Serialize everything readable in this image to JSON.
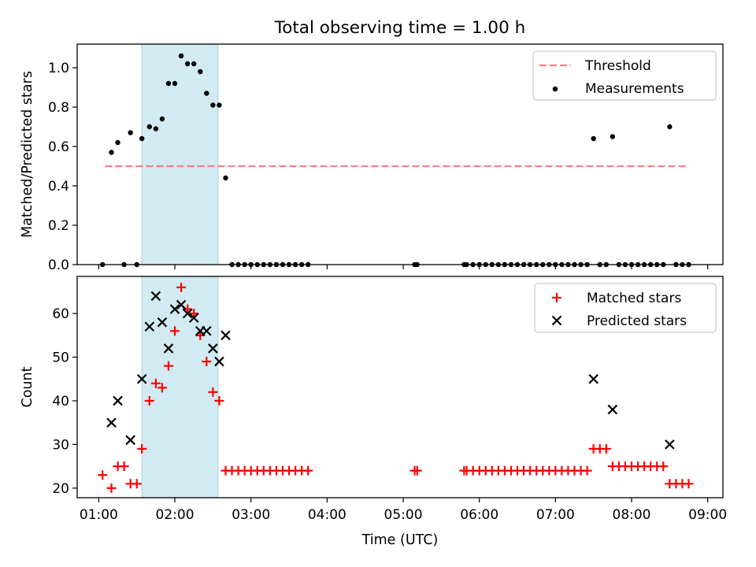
{
  "title": "Total observing time = 1.00 h",
  "colors": {
    "threshold": "#ff7f7f",
    "measurement": "#000000",
    "matched": "#ff0000",
    "predicted": "#000000",
    "window": "#add8e6"
  },
  "chart_data": [
    {
      "type": "scatter",
      "ylabel": "Matched/Predicted stars",
      "ylim": [
        0,
        1.12
      ],
      "yticks": [
        0.0,
        0.2,
        0.4,
        0.6,
        0.8,
        1.0
      ],
      "ytick_labels": [
        "0.0",
        "0.2",
        "0.4",
        "0.6",
        "0.8",
        "1.0"
      ],
      "legend": {
        "placement": "upper right",
        "entries": [
          "Threshold",
          "Measurements"
        ]
      },
      "highlight_window": [
        "01:34",
        "02:34"
      ],
      "threshold": {
        "name": "Threshold",
        "y": 0.5,
        "x_range": [
          "01:05",
          "08:45"
        ]
      },
      "series": [
        {
          "name": "Measurements",
          "points": [
            [
              "01:03",
              0
            ],
            [
              "01:10",
              0.57
            ],
            [
              "01:15",
              0.62
            ],
            [
              "01:20",
              0
            ],
            [
              "01:25",
              0.67
            ],
            [
              "01:30",
              0
            ],
            [
              "01:34",
              0.64
            ],
            [
              "01:40",
              0.7
            ],
            [
              "01:45",
              0.69
            ],
            [
              "01:50",
              0.74
            ],
            [
              "01:55",
              0.92
            ],
            [
              "02:00",
              0.92
            ],
            [
              "02:05",
              1.06
            ],
            [
              "02:10",
              1.02
            ],
            [
              "02:15",
              1.02
            ],
            [
              "02:20",
              0.98
            ],
            [
              "02:25",
              0.87
            ],
            [
              "02:30",
              0.81
            ],
            [
              "02:35",
              0.81
            ],
            [
              "02:40",
              0.44
            ],
            [
              "02:45",
              0
            ],
            [
              "02:50",
              0
            ],
            [
              "02:55",
              0
            ],
            [
              "03:00",
              0
            ],
            [
              "03:05",
              0
            ],
            [
              "03:10",
              0
            ],
            [
              "03:15",
              0
            ],
            [
              "03:20",
              0
            ],
            [
              "03:25",
              0
            ],
            [
              "03:30",
              0
            ],
            [
              "03:35",
              0
            ],
            [
              "03:40",
              0
            ],
            [
              "03:45",
              0
            ],
            [
              "05:09",
              0
            ],
            [
              "05:11",
              0
            ],
            [
              "05:48",
              0
            ],
            [
              "05:50",
              0
            ],
            [
              "05:55",
              0
            ],
            [
              "06:00",
              0
            ],
            [
              "06:05",
              0
            ],
            [
              "06:10",
              0
            ],
            [
              "06:15",
              0
            ],
            [
              "06:20",
              0
            ],
            [
              "06:25",
              0
            ],
            [
              "06:30",
              0
            ],
            [
              "06:35",
              0
            ],
            [
              "06:40",
              0
            ],
            [
              "06:45",
              0
            ],
            [
              "06:50",
              0
            ],
            [
              "06:55",
              0
            ],
            [
              "07:00",
              0
            ],
            [
              "07:05",
              0
            ],
            [
              "07:10",
              0
            ],
            [
              "07:15",
              0
            ],
            [
              "07:20",
              0
            ],
            [
              "07:25",
              0
            ],
            [
              "07:30",
              0.64
            ],
            [
              "07:35",
              0
            ],
            [
              "07:40",
              0
            ],
            [
              "07:45",
              0.65
            ],
            [
              "07:50",
              0
            ],
            [
              "07:55",
              0
            ],
            [
              "08:00",
              0
            ],
            [
              "08:05",
              0
            ],
            [
              "08:10",
              0
            ],
            [
              "08:15",
              0
            ],
            [
              "08:20",
              0
            ],
            [
              "08:25",
              0
            ],
            [
              "08:30",
              0.7
            ],
            [
              "08:35",
              0
            ],
            [
              "08:40",
              0
            ],
            [
              "08:45",
              0
            ]
          ]
        }
      ],
      "xticks": [
        "01:00",
        "02:00",
        "03:00",
        "04:00",
        "05:00",
        "06:00",
        "07:00",
        "08:00",
        "09:00"
      ]
    },
    {
      "type": "scatter",
      "xlabel": "Time (UTC)",
      "ylabel": "Count",
      "ylim": [
        17.8,
        68.5
      ],
      "yticks": [
        20,
        30,
        40,
        50,
        60
      ],
      "ytick_labels": [
        "20",
        "30",
        "40",
        "50",
        "60"
      ],
      "legend": {
        "placement": "upper right",
        "entries": [
          "Matched stars",
          "Predicted stars"
        ]
      },
      "highlight_window": [
        "01:34",
        "02:34"
      ],
      "series": [
        {
          "name": "Matched stars",
          "points": [
            [
              "01:03",
              23
            ],
            [
              "01:10",
              20
            ],
            [
              "01:15",
              25
            ],
            [
              "01:20",
              25
            ],
            [
              "01:25",
              21
            ],
            [
              "01:30",
              21
            ],
            [
              "01:34",
              29
            ],
            [
              "01:40",
              40
            ],
            [
              "01:45",
              44
            ],
            [
              "01:50",
              43
            ],
            [
              "01:55",
              48
            ],
            [
              "02:00",
              56
            ],
            [
              "02:05",
              66
            ],
            [
              "02:10",
              61
            ],
            [
              "02:15",
              60
            ],
            [
              "02:20",
              55
            ],
            [
              "02:25",
              49
            ],
            [
              "02:30",
              42
            ],
            [
              "02:35",
              40
            ],
            [
              "02:40",
              24
            ],
            [
              "02:45",
              24
            ],
            [
              "02:50",
              24
            ],
            [
              "02:55",
              24
            ],
            [
              "03:00",
              24
            ],
            [
              "03:05",
              24
            ],
            [
              "03:10",
              24
            ],
            [
              "03:15",
              24
            ],
            [
              "03:20",
              24
            ],
            [
              "03:25",
              24
            ],
            [
              "03:30",
              24
            ],
            [
              "03:35",
              24
            ],
            [
              "03:40",
              24
            ],
            [
              "03:45",
              24
            ],
            [
              "05:09",
              24
            ],
            [
              "05:11",
              24
            ],
            [
              "05:48",
              24
            ],
            [
              "05:50",
              24
            ],
            [
              "05:55",
              24
            ],
            [
              "06:00",
              24
            ],
            [
              "06:05",
              24
            ],
            [
              "06:10",
              24
            ],
            [
              "06:15",
              24
            ],
            [
              "06:20",
              24
            ],
            [
              "06:25",
              24
            ],
            [
              "06:30",
              24
            ],
            [
              "06:35",
              24
            ],
            [
              "06:40",
              24
            ],
            [
              "06:45",
              24
            ],
            [
              "06:50",
              24
            ],
            [
              "06:55",
              24
            ],
            [
              "07:00",
              24
            ],
            [
              "07:05",
              24
            ],
            [
              "07:10",
              24
            ],
            [
              "07:15",
              24
            ],
            [
              "07:20",
              24
            ],
            [
              "07:25",
              24
            ],
            [
              "07:30",
              29
            ],
            [
              "07:35",
              29
            ],
            [
              "07:40",
              29
            ],
            [
              "07:45",
              25
            ],
            [
              "07:50",
              25
            ],
            [
              "07:55",
              25
            ],
            [
              "08:00",
              25
            ],
            [
              "08:05",
              25
            ],
            [
              "08:10",
              25
            ],
            [
              "08:15",
              25
            ],
            [
              "08:20",
              25
            ],
            [
              "08:25",
              25
            ],
            [
              "08:30",
              21
            ],
            [
              "08:35",
              21
            ],
            [
              "08:40",
              21
            ],
            [
              "08:45",
              21
            ]
          ]
        },
        {
          "name": "Predicted stars",
          "points": [
            [
              "01:10",
              35
            ],
            [
              "01:15",
              40
            ],
            [
              "01:25",
              31
            ],
            [
              "01:34",
              45
            ],
            [
              "01:40",
              57
            ],
            [
              "01:45",
              64
            ],
            [
              "01:50",
              58
            ],
            [
              "01:55",
              52
            ],
            [
              "02:00",
              61
            ],
            [
              "02:05",
              62
            ],
            [
              "02:10",
              60
            ],
            [
              "02:15",
              59
            ],
            [
              "02:20",
              56
            ],
            [
              "02:25",
              56
            ],
            [
              "02:30",
              52
            ],
            [
              "02:35",
              49
            ],
            [
              "02:40",
              55
            ],
            [
              "07:30",
              45
            ],
            [
              "07:45",
              38
            ],
            [
              "08:30",
              30
            ]
          ]
        }
      ],
      "xticks": [
        "01:00",
        "02:00",
        "03:00",
        "04:00",
        "05:00",
        "06:00",
        "07:00",
        "08:00",
        "09:00"
      ]
    }
  ]
}
